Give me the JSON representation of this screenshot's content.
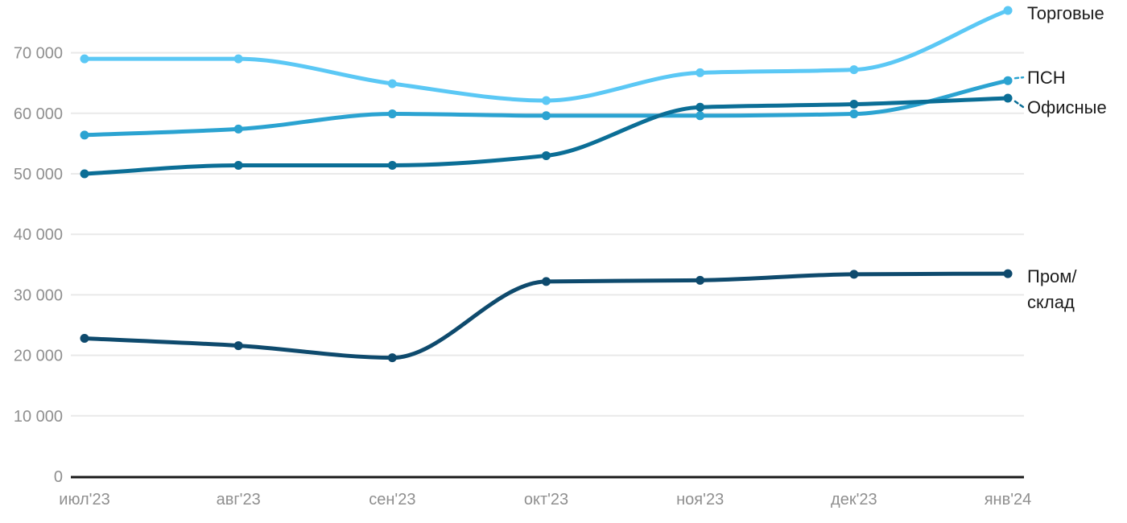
{
  "chart_data": {
    "type": "line",
    "title": "",
    "xlabel": "",
    "ylabel": "",
    "grid": true,
    "legend_position": "right-end-labels",
    "x": [
      "июл'23",
      "авг'23",
      "сен'23",
      "окт'23",
      "ноя'23",
      "дек'23",
      "янв'24"
    ],
    "series": [
      {
        "name": "Торговые",
        "label_lines": [
          "Торговые"
        ],
        "color": "#5bc8f5",
        "values": [
          69000,
          69000,
          64900,
          62100,
          66700,
          67200,
          77000
        ]
      },
      {
        "name": "ПСН",
        "label_lines": [
          "ПСН"
        ],
        "color": "#2ba3d1",
        "values": [
          56400,
          57400,
          59900,
          59600,
          59600,
          59900,
          65400
        ]
      },
      {
        "name": "Офисные",
        "label_lines": [
          "Офисные"
        ],
        "color": "#0b6e96",
        "values": [
          50000,
          51400,
          51400,
          53000,
          61000,
          61500,
          62500
        ]
      },
      {
        "name": "Пром/склад",
        "label_lines": [
          "Пром/",
          "склад"
        ],
        "color": "#0e4a6d",
        "values": [
          22800,
          21600,
          19600,
          32200,
          32400,
          33400,
          33500
        ]
      }
    ],
    "yticks": [
      0,
      10000,
      20000,
      30000,
      40000,
      50000,
      60000,
      70000
    ],
    "ytick_labels": [
      "0",
      "10 000",
      "20 000",
      "30 000",
      "40 000",
      "50 000",
      "60 000",
      "70 000"
    ],
    "ylim": [
      0,
      78000
    ]
  },
  "styles": {
    "grid_color": "#e9e9e9",
    "axis_color": "#1a1a1a",
    "tick_label_color": "#8f8f8f",
    "series_label_color": "#1c1c1c",
    "background": "#ffffff"
  }
}
